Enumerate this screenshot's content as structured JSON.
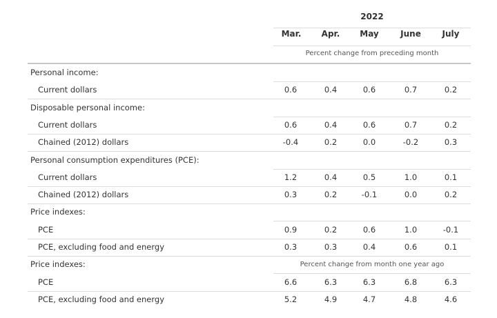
{
  "header": {
    "year": "2022",
    "months": [
      "Mar.",
      "Apr.",
      "May",
      "June",
      "July"
    ],
    "unit_monthly": "Percent change from preceding month",
    "unit_yearly": "Percent change from month one year ago"
  },
  "rows": [
    {
      "label": "Personal income:",
      "indent": false,
      "values": []
    },
    {
      "label": "Current dollars",
      "indent": true,
      "values": [
        "0.6",
        "0.4",
        "0.6",
        "0.7",
        "0.2"
      ]
    },
    {
      "label": "Disposable personal income:",
      "indent": false,
      "values": []
    },
    {
      "label": "Current dollars",
      "indent": true,
      "values": [
        "0.6",
        "0.4",
        "0.6",
        "0.7",
        "0.2"
      ]
    },
    {
      "label": "Chained (2012) dollars",
      "indent": true,
      "values": [
        "-0.4",
        "0.2",
        "0.0",
        "-0.2",
        "0.3"
      ]
    },
    {
      "label": "Personal consumption expenditures (PCE):",
      "indent": false,
      "values": []
    },
    {
      "label": "Current dollars",
      "indent": true,
      "values": [
        "1.2",
        "0.4",
        "0.5",
        "1.0",
        "0.1"
      ]
    },
    {
      "label": "Chained (2012) dollars",
      "indent": true,
      "values": [
        "0.3",
        "0.2",
        "-0.1",
        "0.0",
        "0.2"
      ]
    },
    {
      "label": "Price indexes:",
      "indent": false,
      "values": []
    },
    {
      "label": "PCE",
      "indent": true,
      "values": [
        "0.9",
        "0.2",
        "0.6",
        "1.0",
        "-0.1"
      ]
    },
    {
      "label": "PCE, excluding food and energy",
      "indent": true,
      "values": [
        "0.3",
        "0.3",
        "0.4",
        "0.6",
        "0.1"
      ]
    },
    {
      "label": "Price indexes:",
      "indent": false,
      "values": [],
      "unit_note": true
    },
    {
      "label": "PCE",
      "indent": true,
      "values": [
        "6.6",
        "6.3",
        "6.3",
        "6.8",
        "6.3"
      ]
    },
    {
      "label": "PCE, excluding food and energy",
      "indent": true,
      "values": [
        "5.2",
        "4.9",
        "4.7",
        "4.8",
        "4.6"
      ]
    }
  ]
}
